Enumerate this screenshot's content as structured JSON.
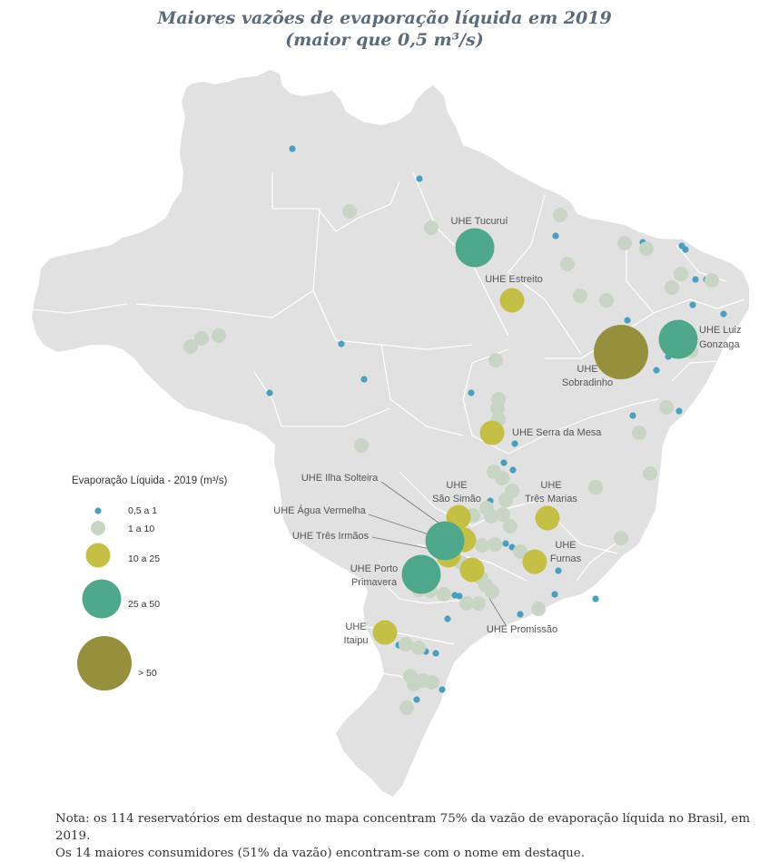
{
  "title_line1": "Maiores vazões de evaporação líquida em 2019",
  "title_line2": "(maior que 0,5 m³/s)",
  "colors": {
    "class_0_5_1": "#4a9fbf",
    "class_1_10": "#c9d5c4",
    "class_10_25": "#c5bf45",
    "class_25_50": "#4fa88c",
    "class_gt_50": "#958f3e",
    "land": "#e1e1e1",
    "borders": "#ffffff"
  },
  "legend": {
    "title": "Evaporação Líquida - 2019 (m³/s)",
    "items": [
      {
        "label": "0,5 a 1",
        "class": "class_0_5_1"
      },
      {
        "label": "1 a 10",
        "class": "class_1_10"
      },
      {
        "label": "10 a 25",
        "class": "class_10_25"
      },
      {
        "label": "25 a 50",
        "class": "class_25_50"
      },
      {
        "label": "> 50",
        "class": "class_gt_50"
      }
    ]
  },
  "labels": {
    "tucurui": "UHE Tucuruí",
    "estreito": "UHE Estreito",
    "luiz_gonzaga_1": "UHE Luiz",
    "luiz_gonzaga_2": "Gonzaga",
    "sobradinho_1": "UHE",
    "sobradinho_2": "Sobradinho",
    "serra_da_mesa": "UHE Serra da Mesa",
    "ilha_solteira": "UHE Ilha Solteira",
    "sao_simao_1": "UHE",
    "sao_simao_2": "São Simão",
    "tres_marias_1": "UHE",
    "tres_marias_2": "Três Marias",
    "agua_vermelha": "UHE Água Vermelha",
    "tres_irmaos": "UHE Três Irmãos",
    "furnas_1": "UHE",
    "furnas_2": "Furnas",
    "porto_primavera_1": "UHE Porto",
    "porto_primavera_2": "Primavera",
    "promissao": "UHE Promissão",
    "itaipu_1": "UHE",
    "itaipu_2": "Itaipu"
  },
  "reservoirs": [
    {
      "name": "UHE Tucuruí",
      "class": "class_25_50"
    },
    {
      "name": "UHE Estreito",
      "class": "class_10_25"
    },
    {
      "name": "UHE Luiz Gonzaga",
      "class": "class_25_50"
    },
    {
      "name": "UHE Sobradinho",
      "class": "class_gt_50"
    },
    {
      "name": "UHE Serra da Mesa",
      "class": "class_10_25"
    },
    {
      "name": "UHE Ilha Solteira",
      "class": "class_25_50"
    },
    {
      "name": "UHE São Simão",
      "class": "class_10_25"
    },
    {
      "name": "UHE Três Marias",
      "class": "class_10_25"
    },
    {
      "name": "UHE Água Vermelha",
      "class": "class_10_25"
    },
    {
      "name": "UHE Três Irmãos",
      "class": "class_10_25"
    },
    {
      "name": "UHE Furnas",
      "class": "class_10_25"
    },
    {
      "name": "UHE Porto Primavera",
      "class": "class_25_50"
    },
    {
      "name": "UHE Promissão",
      "class": "class_10_25"
    },
    {
      "name": "UHE Itaipu",
      "class": "class_10_25"
    }
  ],
  "note_line1": "Nota: os 114 reservatórios em destaque no mapa concentram 75% da vazão de evaporação líquida no Brasil, em 2019.",
  "note_line2": "Os 14 maiores consumidores (51% da vazão) encontram-se com o nome em destaque."
}
